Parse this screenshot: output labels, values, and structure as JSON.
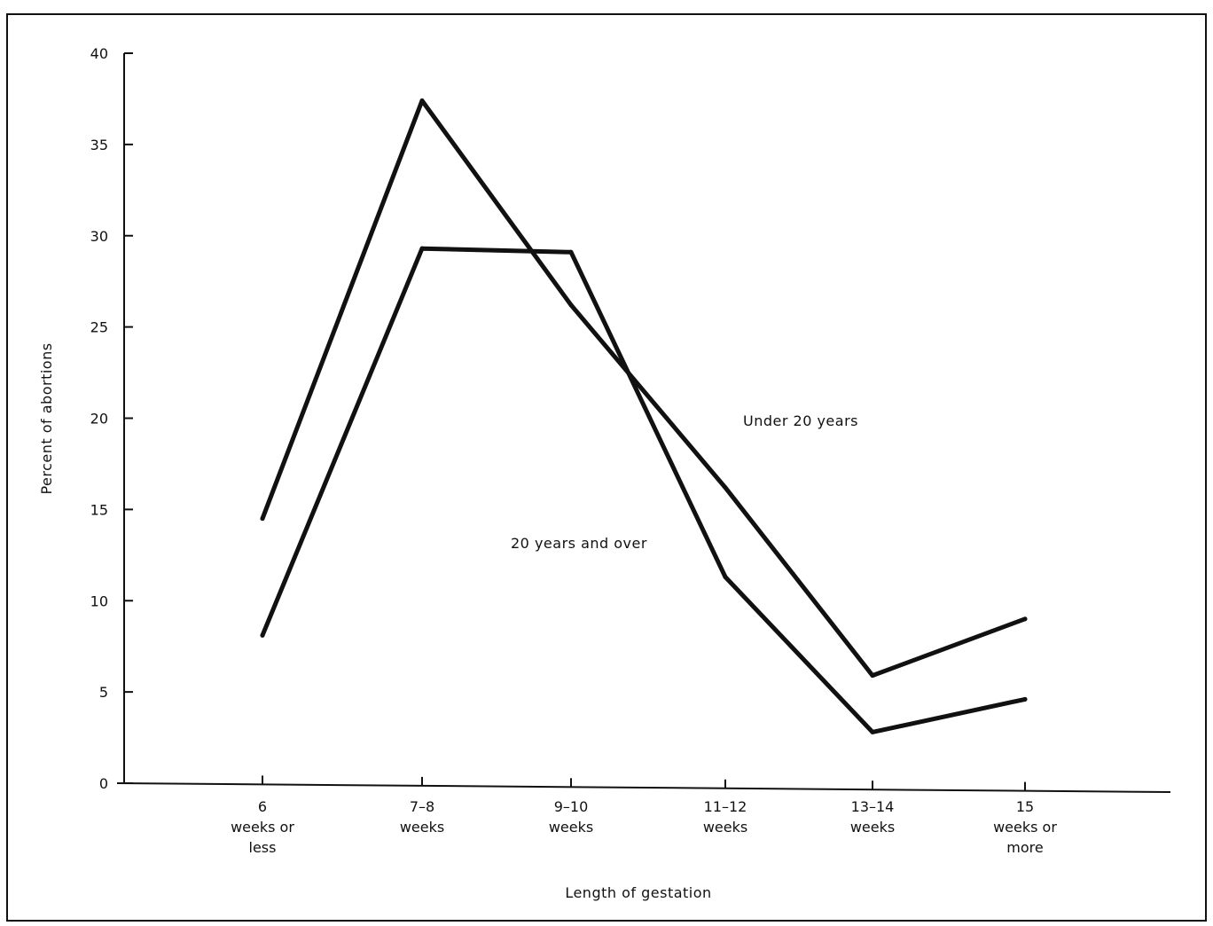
{
  "chart_data": {
    "type": "line",
    "title": "",
    "xlabel": "Length of gestation",
    "ylabel": "Percent of abortions",
    "ylim": [
      0,
      40
    ],
    "yticks": [
      0,
      5,
      10,
      15,
      20,
      25,
      30,
      35,
      40
    ],
    "categories": [
      [
        "6",
        "weeks or",
        "less"
      ],
      [
        "7–8",
        "weeks"
      ],
      [
        "9–10",
        "weeks"
      ],
      [
        "11–12",
        "weeks"
      ],
      [
        "13–14",
        "weeks"
      ],
      [
        "15",
        "weeks or",
        "more"
      ]
    ],
    "series": [
      {
        "name": "Under 20 years",
        "values": [
          14.5,
          37.4,
          26.2,
          16.2,
          5.9,
          9.0
        ]
      },
      {
        "name": "20 years and over",
        "values": [
          8.1,
          29.3,
          29.1,
          11.3,
          2.8,
          4.6
        ]
      }
    ],
    "grid": false,
    "legend": "inline labels"
  }
}
